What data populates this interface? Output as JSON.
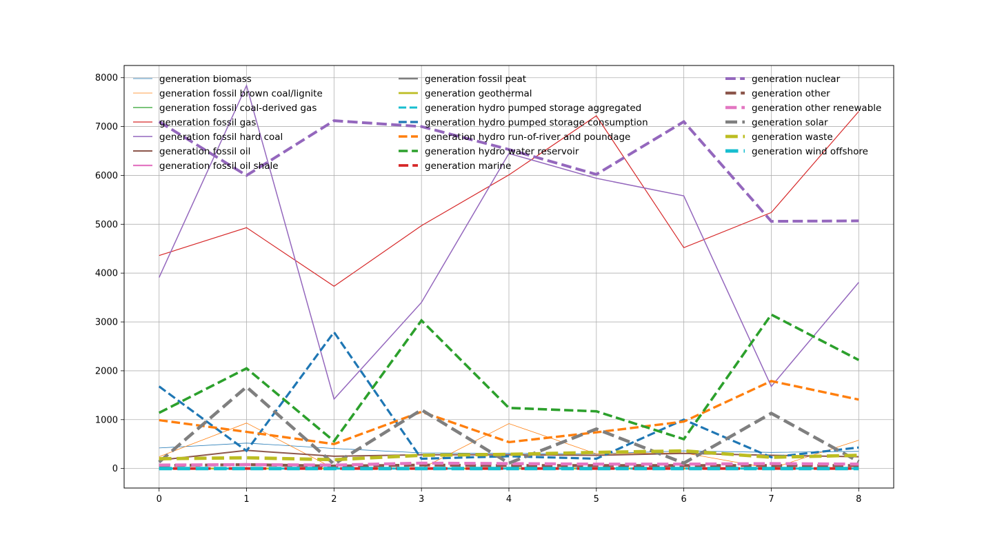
{
  "chart_data": {
    "type": "line",
    "title": "",
    "xlabel": "",
    "ylabel": "",
    "x": [
      0,
      1,
      2,
      3,
      4,
      5,
      6,
      7,
      8
    ],
    "xlim": [
      -0.4,
      8.4
    ],
    "ylim": [
      -400,
      8250
    ],
    "xticks": [
      0,
      1,
      2,
      3,
      4,
      5,
      6,
      7,
      8
    ],
    "yticks": [
      0,
      1000,
      2000,
      3000,
      4000,
      5000,
      6000,
      7000,
      8000
    ],
    "grid": true,
    "legend": "top, 3 columns, no frame",
    "series": [
      {
        "name": "generation biomass",
        "color": "#1f77b4",
        "style": "solid",
        "width": 0.8,
        "values": [
          420,
          520,
          410,
          320,
          310,
          300,
          360,
          330,
          350
        ]
      },
      {
        "name": "generation fossil brown coal/lignite",
        "color": "#ff7f0e",
        "style": "solid",
        "width": 0.8,
        "values": [
          240,
          930,
          0,
          0,
          920,
          300,
          320,
          0,
          580
        ]
      },
      {
        "name": "generation fossil coal-derived gas",
        "color": "#2ca02c",
        "style": "solid",
        "width": 1.2,
        "values": [
          0,
          0,
          0,
          0,
          0,
          0,
          0,
          0,
          0
        ]
      },
      {
        "name": "generation fossil gas",
        "color": "#d62728",
        "style": "solid",
        "width": 1.2,
        "values": [
          4360,
          4930,
          3730,
          4970,
          6010,
          7220,
          4520,
          5240,
          7310
        ]
      },
      {
        "name": "generation fossil hard coal",
        "color": "#9467bd",
        "style": "solid",
        "width": 1.5,
        "values": [
          3910,
          7840,
          1420,
          3400,
          6450,
          5940,
          5580,
          1680,
          3810
        ]
      },
      {
        "name": "generation fossil oil",
        "color": "#8c564b",
        "style": "solid",
        "width": 2,
        "values": [
          170,
          370,
          250,
          280,
          280,
          270,
          310,
          270,
          240
        ]
      },
      {
        "name": "generation fossil oil shale",
        "color": "#e377c2",
        "style": "solid",
        "width": 2.2,
        "values": [
          0,
          0,
          0,
          0,
          0,
          0,
          0,
          0,
          0
        ]
      },
      {
        "name": "generation fossil peat",
        "color": "#7f7f7f",
        "style": "solid",
        "width": 2.5,
        "values": [
          0,
          0,
          0,
          0,
          0,
          0,
          0,
          0,
          0
        ]
      },
      {
        "name": "generation geothermal",
        "color": "#bcbd22",
        "style": "solid",
        "width": 2.7,
        "values": [
          0,
          0,
          0,
          0,
          0,
          0,
          0,
          0,
          0
        ]
      },
      {
        "name": "generation hydro pumped storage aggregated",
        "color": "#17becf",
        "style": "dashed",
        "width": 3,
        "values": [
          0,
          0,
          0,
          0,
          0,
          0,
          0,
          0,
          0
        ]
      },
      {
        "name": "generation hydro pumped storage consumption",
        "color": "#1f77b4",
        "style": "dashed",
        "width": 3.2,
        "values": [
          1680,
          360,
          2790,
          200,
          250,
          200,
          1000,
          230,
          430
        ]
      },
      {
        "name": "generation hydro run-of-river and poundage",
        "color": "#ff7f0e",
        "style": "dashed",
        "width": 3.4,
        "values": [
          990,
          750,
          500,
          1160,
          540,
          740,
          960,
          1790,
          1410
        ]
      },
      {
        "name": "generation hydro water reservoir",
        "color": "#2ca02c",
        "style": "dashed",
        "width": 3.6,
        "values": [
          1140,
          2050,
          560,
          3030,
          1240,
          1170,
          600,
          3150,
          2220
        ]
      },
      {
        "name": "generation marine",
        "color": "#d62728",
        "style": "dashed",
        "width": 3.8,
        "values": [
          0,
          0,
          0,
          0,
          0,
          0,
          0,
          0,
          0
        ]
      },
      {
        "name": "generation nuclear",
        "color": "#9467bd",
        "style": "dashed",
        "width": 4,
        "values": [
          7100,
          6000,
          7120,
          7000,
          6530,
          6020,
          7100,
          5060,
          5070
        ]
      },
      {
        "name": "generation other",
        "color": "#8c564b",
        "style": "dashed",
        "width": 4.2,
        "values": [
          60,
          80,
          50,
          70,
          60,
          60,
          60,
          60,
          60
        ]
      },
      {
        "name": "generation other renewable",
        "color": "#e377c2",
        "style": "dashed",
        "width": 4.4,
        "values": [
          70,
          80,
          70,
          110,
          100,
          90,
          90,
          100,
          90
        ]
      },
      {
        "name": "generation solar",
        "color": "#7f7f7f",
        "style": "dashed",
        "width": 4.6,
        "values": [
          130,
          1670,
          90,
          1200,
          110,
          810,
          110,
          1130,
          140
        ]
      },
      {
        "name": "generation waste",
        "color": "#bcbd22",
        "style": "dashed",
        "width": 4.8,
        "values": [
          200,
          220,
          180,
          270,
          290,
          330,
          360,
          230,
          270
        ]
      },
      {
        "name": "generation wind offshore",
        "color": "#17becf",
        "style": "dashed",
        "width": 5,
        "values": [
          0,
          0,
          0,
          0,
          0,
          0,
          0,
          0,
          0
        ]
      }
    ]
  }
}
